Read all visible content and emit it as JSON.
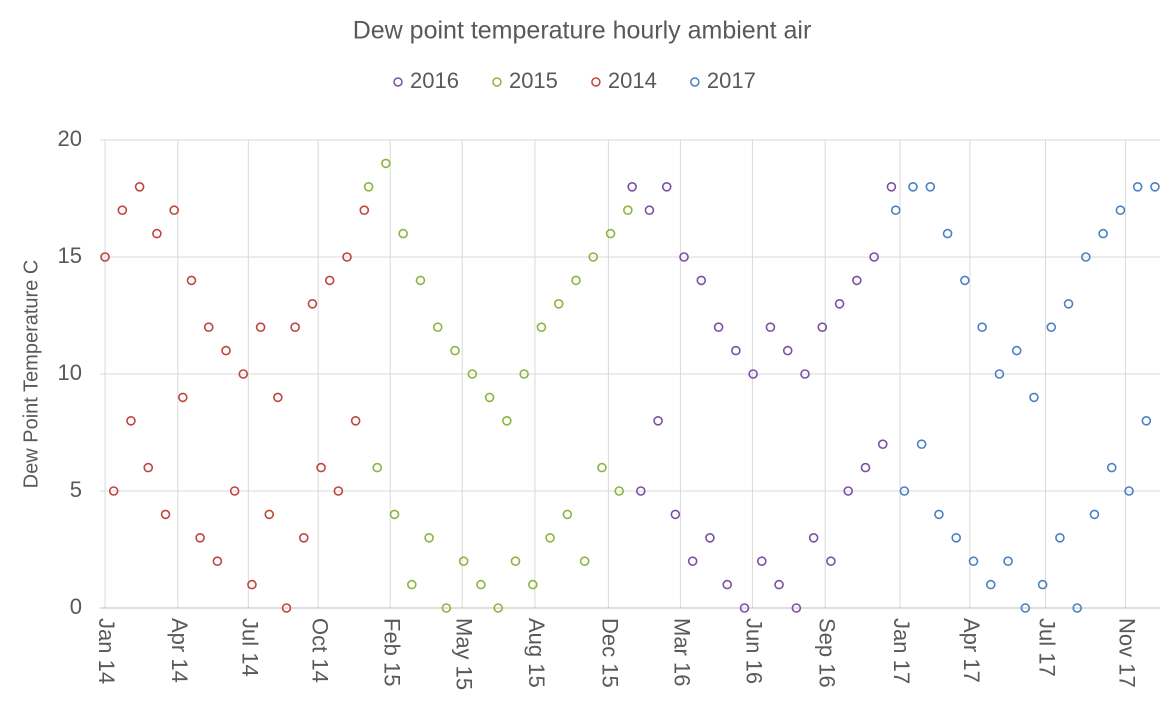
{
  "chart_data": {
    "type": "scatter",
    "title": "Dew point temperature hourly ambient air",
    "y_label": "Dew Point Temperature C",
    "ylim": [
      0,
      20
    ],
    "yticks": [
      0,
      5,
      10,
      15,
      20
    ],
    "xlim": [
      41633,
      43105
    ],
    "xticks": [
      {
        "value": 41640,
        "label": "Jan 14"
      },
      {
        "value": 41741,
        "label": "Apr 14"
      },
      {
        "value": 41839,
        "label": "Jul 14"
      },
      {
        "value": 41936,
        "label": "Oct 14"
      },
      {
        "value": 42036,
        "label": "Feb 15"
      },
      {
        "value": 42136,
        "label": "May 15"
      },
      {
        "value": 42237,
        "label": "Aug 15"
      },
      {
        "value": 42339,
        "label": "Dec 15"
      },
      {
        "value": 42439,
        "label": "Mar 16"
      },
      {
        "value": 42539,
        "label": "Jun 16"
      },
      {
        "value": 42640,
        "label": "Sep 16"
      },
      {
        "value": 42744,
        "label": "Jan 17"
      },
      {
        "value": 42841,
        "label": "Apr 17"
      },
      {
        "value": 42946,
        "label": "Jul 17"
      },
      {
        "value": 43057,
        "label": "Nov 17"
      }
    ],
    "grid": true,
    "legend": "top",
    "series": [
      {
        "name": "2016",
        "color": "#7b4fa5",
        "x": [
          42372,
          42384,
          42396,
          42408,
          42420,
          42432,
          42444,
          42456,
          42468,
          42480,
          42492,
          42504,
          42516,
          42528,
          42540,
          42552,
          42564,
          42576,
          42588,
          42600,
          42612,
          42624,
          42636,
          42648,
          42660,
          42672,
          42684,
          42696,
          42708,
          42720,
          42732
        ],
        "values": [
          18,
          5,
          17,
          8,
          18,
          4,
          15,
          2,
          14,
          3,
          12,
          1,
          11,
          0,
          10,
          2,
          12,
          1,
          11,
          0,
          10,
          3,
          12,
          2,
          13,
          5,
          14,
          6,
          15,
          7,
          18
        ]
      },
      {
        "name": "2015",
        "color": "#8cb43f",
        "x": [
          42006,
          42018,
          42030,
          42042,
          42054,
          42066,
          42078,
          42090,
          42102,
          42114,
          42126,
          42138,
          42150,
          42162,
          42174,
          42186,
          42198,
          42210,
          42222,
          42234,
          42246,
          42258,
          42270,
          42282,
          42294,
          42306,
          42318,
          42330,
          42342,
          42354,
          42366
        ],
        "values": [
          18,
          6,
          19,
          4,
          16,
          1,
          14,
          3,
          12,
          0,
          11,
          2,
          10,
          1,
          9,
          0,
          8,
          2,
          10,
          1,
          12,
          3,
          13,
          4,
          14,
          2,
          15,
          6,
          16,
          5,
          17
        ]
      },
      {
        "name": "2014",
        "color": "#c0433d",
        "x": [
          41640,
          41652,
          41664,
          41676,
          41688,
          41700,
          41712,
          41724,
          41736,
          41748,
          41760,
          41772,
          41784,
          41796,
          41808,
          41820,
          41832,
          41844,
          41856,
          41868,
          41880,
          41892,
          41904,
          41916,
          41928,
          41940,
          41952,
          41964,
          41976,
          41988,
          42000
        ],
        "values": [
          15,
          5,
          17,
          8,
          18,
          6,
          16,
          4,
          17,
          9,
          14,
          3,
          12,
          2,
          11,
          5,
          10,
          1,
          12,
          4,
          9,
          0,
          12,
          3,
          13,
          6,
          14,
          5,
          15,
          8,
          17
        ]
      },
      {
        "name": "2017",
        "color": "#4a80c4",
        "x": [
          42738,
          42750,
          42762,
          42774,
          42786,
          42798,
          42810,
          42822,
          42834,
          42846,
          42858,
          42870,
          42882,
          42894,
          42906,
          42918,
          42930,
          42942,
          42954,
          42966,
          42978,
          42990,
          43002,
          43014,
          43026,
          43038,
          43050,
          43062,
          43074,
          43086,
          43098
        ],
        "values": [
          17,
          5,
          18,
          7,
          18,
          4,
          16,
          3,
          14,
          2,
          12,
          1,
          10,
          2,
          11,
          0,
          9,
          1,
          12,
          3,
          13,
          0,
          15,
          4,
          16,
          6,
          17,
          5,
          18,
          8,
          18
        ]
      }
    ]
  }
}
